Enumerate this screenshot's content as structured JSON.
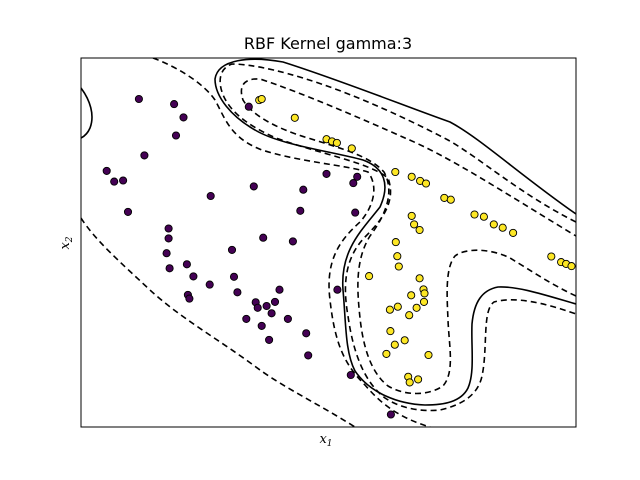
{
  "chart_data": {
    "type": "scatter",
    "title": "RBF Kernel gamma:3",
    "xlabel": {
      "base": "x",
      "sub": "1"
    },
    "ylabel": {
      "base": "x",
      "sub": "2"
    },
    "ticks": "none",
    "xlim": [
      0,
      100
    ],
    "ylim": [
      0,
      100
    ],
    "colors": {
      "class_0": "#440154",
      "class_1": "#fde725",
      "edge": "#000000",
      "contour": "#000000"
    },
    "series": [
      {
        "class": 0,
        "points": [
          [
            11.7,
            88.9
          ],
          [
            18.8,
            87.5
          ],
          [
            20.7,
            83.9
          ],
          [
            19.2,
            79.0
          ],
          [
            12.8,
            73.6
          ],
          [
            5.2,
            69.4
          ],
          [
            6.7,
            66.5
          ],
          [
            8.5,
            66.8
          ],
          [
            9.5,
            58.3
          ],
          [
            33.9,
            86.8
          ],
          [
            26.2,
            62.6
          ],
          [
            34.9,
            65.2
          ],
          [
            44.9,
            64.3
          ],
          [
            49.6,
            68.6
          ],
          [
            55.0,
            66.1
          ],
          [
            55.4,
            58.1
          ],
          [
            44.3,
            58.6
          ],
          [
            36.8,
            51.3
          ],
          [
            42.8,
            50.3
          ],
          [
            30.5,
            48.0
          ],
          [
            17.7,
            53.8
          ],
          [
            17.7,
            51.1
          ],
          [
            17.3,
            47.1
          ],
          [
            17.9,
            43.0
          ],
          [
            21.4,
            44.1
          ],
          [
            22.7,
            40.8
          ],
          [
            21.6,
            35.8
          ],
          [
            21.9,
            34.8
          ],
          [
            26.0,
            38.6
          ],
          [
            30.9,
            40.7
          ],
          [
            31.6,
            36.5
          ],
          [
            35.3,
            33.8
          ],
          [
            35.7,
            32.3
          ],
          [
            39.2,
            33.9
          ],
          [
            37.5,
            32.8
          ],
          [
            38.5,
            30.8
          ],
          [
            40.1,
            37.2
          ],
          [
            33.4,
            29.3
          ],
          [
            36.5,
            27.4
          ],
          [
            41.8,
            29.3
          ],
          [
            45.5,
            25.4
          ],
          [
            38.0,
            23.6
          ],
          [
            45.9,
            19.4
          ],
          [
            55.8,
            67.8
          ],
          [
            51.8,
            37.2
          ],
          [
            54.5,
            14.1
          ],
          [
            62.6,
            3.4
          ]
        ]
      },
      {
        "class": 1,
        "points": [
          [
            36.0,
            88.6
          ],
          [
            36.5,
            88.9
          ],
          [
            43.2,
            83.8
          ],
          [
            49.6,
            78.0
          ],
          [
            50.7,
            77.4
          ],
          [
            51.7,
            77.0
          ],
          [
            54.7,
            75.5
          ],
          [
            63.5,
            69.1
          ],
          [
            66.8,
            67.8
          ],
          [
            68.5,
            66.7
          ],
          [
            69.7,
            66.0
          ],
          [
            73.4,
            62.1
          ],
          [
            74.7,
            61.6
          ],
          [
            66.8,
            57.2
          ],
          [
            67.3,
            54.9
          ],
          [
            68.4,
            53.4
          ],
          [
            79.5,
            57.6
          ],
          [
            81.4,
            57.0
          ],
          [
            83.4,
            54.9
          ],
          [
            85.2,
            54.0
          ],
          [
            87.3,
            52.6
          ],
          [
            95.0,
            46.2
          ],
          [
            97.0,
            44.7
          ],
          [
            98.0,
            44.2
          ],
          [
            99.1,
            43.6
          ],
          [
            63.6,
            50.1
          ],
          [
            63.9,
            46.3
          ],
          [
            64.2,
            43.5
          ],
          [
            58.2,
            40.9
          ],
          [
            68.4,
            40.3
          ],
          [
            69.2,
            37.3
          ],
          [
            69.4,
            36.2
          ],
          [
            66.7,
            35.7
          ],
          [
            69.3,
            33.9
          ],
          [
            66.3,
            30.3
          ],
          [
            64.0,
            32.6
          ],
          [
            62.4,
            31.8
          ],
          [
            67.8,
            32.3
          ],
          [
            62.5,
            26.0
          ],
          [
            63.4,
            22.3
          ],
          [
            65.4,
            23.5
          ],
          [
            70.2,
            19.5
          ],
          [
            61.7,
            19.8
          ],
          [
            66.1,
            13.6
          ],
          [
            66.4,
            12.1
          ],
          [
            68.1,
            12.9
          ]
        ]
      }
    ],
    "contours": [
      {
        "level": "decision boundary",
        "style": "solid"
      },
      {
        "level": "-1 margin",
        "style": "dashed"
      },
      {
        "level": "+1 margin",
        "style": "dashed"
      }
    ]
  }
}
